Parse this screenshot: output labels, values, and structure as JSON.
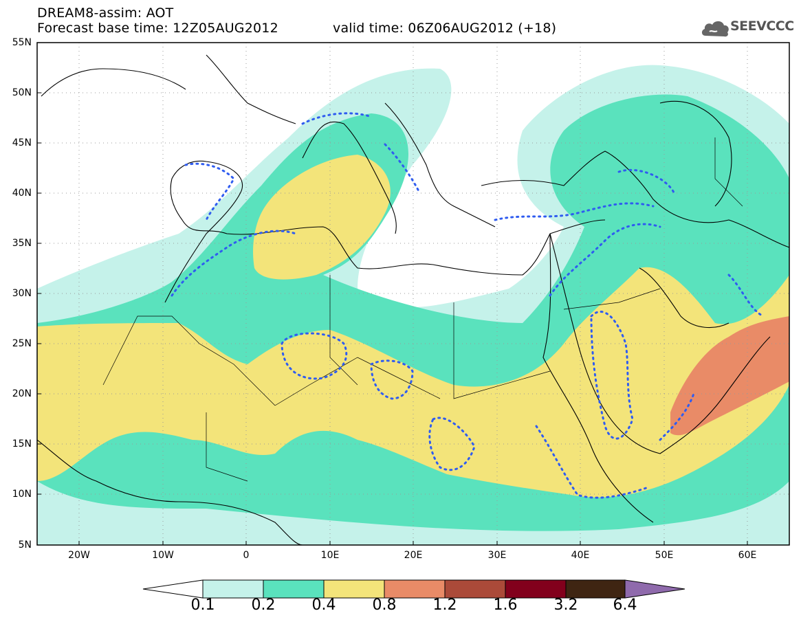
{
  "header": {
    "title": "DREAM8-assim: AOT",
    "base_time": "Forecast base time: 12Z05AUG2012",
    "valid_time": "valid time: 06Z06AUG2012 (+18)"
  },
  "logo": {
    "text": "SEEVCCC",
    "icon": "cloud-icon"
  },
  "map": {
    "variable": "AOT",
    "lat_labels": [
      "55N",
      "50N",
      "45N",
      "40N",
      "35N",
      "30N",
      "25N",
      "20N",
      "15N",
      "10N",
      "5N"
    ],
    "lon_labels": [
      "20W",
      "10W",
      "0",
      "10E",
      "20E",
      "30E",
      "40E",
      "50E",
      "60E"
    ],
    "lon_range": [
      -25,
      65
    ],
    "lat_range": [
      5,
      55
    ],
    "grid": true
  },
  "colorbar": {
    "labels": [
      "0.1",
      "0.2",
      "0.4",
      "0.8",
      "1.2",
      "1.6",
      "3.2",
      "6.4"
    ],
    "colors": [
      "#ffffff",
      "#c5f2ea",
      "#5ae2bd",
      "#f3e47a",
      "#e98b67",
      "#ab4a39",
      "#82001c",
      "#3f2512",
      "#8f6aac"
    ]
  }
}
